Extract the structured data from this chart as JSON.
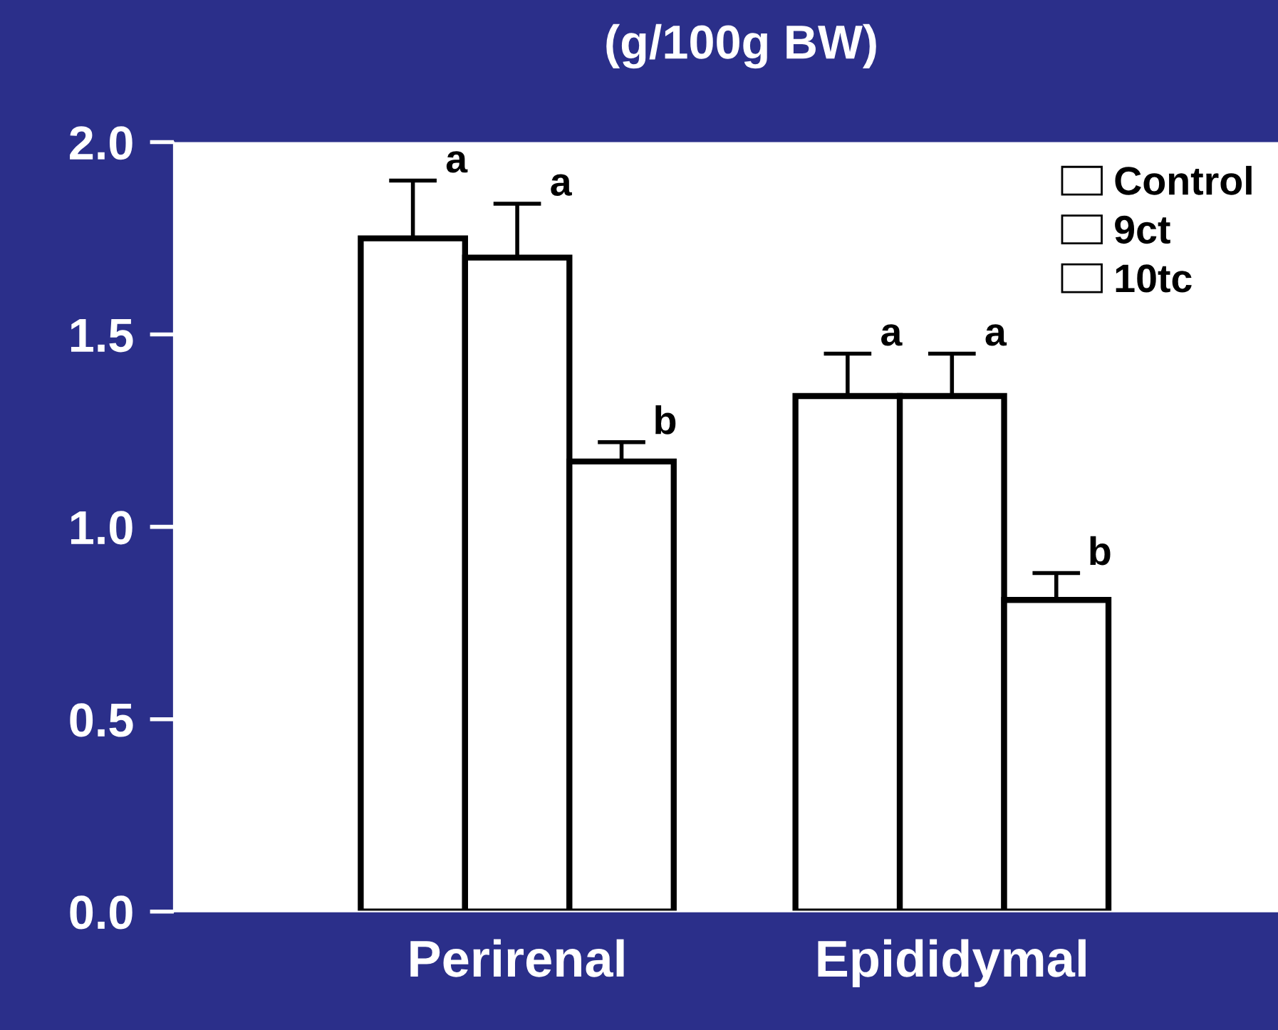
{
  "chart_data": {
    "type": "bar",
    "title": "(g/100g BW)",
    "categories": [
      "Perirenal",
      "Epididymal"
    ],
    "series": [
      {
        "name": "Control",
        "color": "#ffffff",
        "values": [
          1.75,
          1.34
        ],
        "errors": [
          [
            1.75,
            1.9
          ],
          [
            1.34,
            1.45
          ]
        ]
      },
      {
        "name": "9ct",
        "color": "#ffffff",
        "values": [
          1.7,
          1.34
        ],
        "errors": [
          [
            1.7,
            1.84
          ],
          [
            1.34,
            1.45
          ]
        ]
      },
      {
        "name": "10tc",
        "color": "#ffffff",
        "values": [
          1.17,
          0.81
        ],
        "errors": [
          [
            1.17,
            1.22
          ],
          [
            0.81,
            0.88
          ]
        ]
      }
    ],
    "annotations": [
      "a",
      "a",
      "b",
      "a",
      "a",
      "b"
    ],
    "ylim": [
      0,
      2
    ],
    "yticks": [
      {
        "value": 0,
        "label": "0.0"
      },
      {
        "value": 0.5,
        "label": "0.5"
      },
      {
        "value": 1,
        "label": "1.0"
      },
      {
        "value": 1.5,
        "label": "1.5"
      },
      {
        "value": 2,
        "label": "2.0"
      }
    ],
    "grid": false,
    "legend": "top right"
  }
}
